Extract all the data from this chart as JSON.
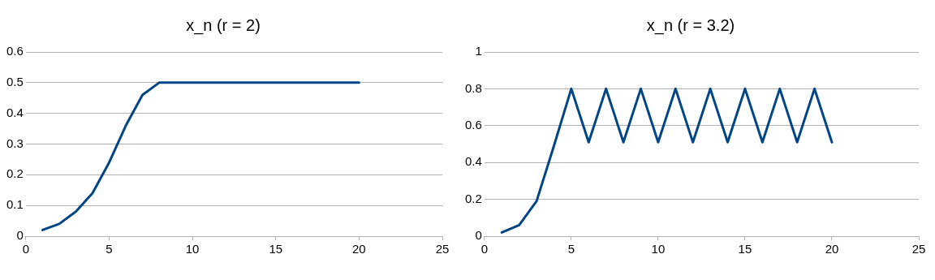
{
  "chart_data": [
    {
      "type": "line",
      "title": "x_n (r = 2)",
      "x": [
        1,
        2,
        3,
        4,
        5,
        6,
        7,
        8,
        9,
        10,
        11,
        12,
        13,
        14,
        15,
        16,
        17,
        18,
        19,
        20
      ],
      "series": [
        {
          "color": "#004586",
          "values": [
            0.02,
            0.04,
            0.08,
            0.14,
            0.24,
            0.36,
            0.46,
            0.5,
            0.5,
            0.5,
            0.5,
            0.5,
            0.5,
            0.5,
            0.5,
            0.5,
            0.5,
            0.5,
            0.5,
            0.5
          ]
        }
      ],
      "xlim": [
        0,
        25
      ],
      "xticks": [
        0,
        5,
        10,
        15,
        20,
        25
      ],
      "ylim": [
        0,
        0.6
      ],
      "yticks": [
        0,
        0.1,
        0.2,
        0.3,
        0.4,
        0.5,
        0.6
      ],
      "grid": "y",
      "legend": false,
      "marker": "none",
      "line_style": "solid"
    },
    {
      "type": "line",
      "title": "x_n (r = 3.2)",
      "x": [
        1,
        2,
        3,
        4,
        5,
        6,
        7,
        8,
        9,
        10,
        11,
        12,
        13,
        14,
        15,
        16,
        17,
        18,
        19,
        20
      ],
      "series": [
        {
          "color": "#004586",
          "values": [
            0.02,
            0.06,
            0.19,
            0.49,
            0.8,
            0.51,
            0.8,
            0.51,
            0.8,
            0.51,
            0.8,
            0.51,
            0.8,
            0.51,
            0.8,
            0.51,
            0.8,
            0.51,
            0.8,
            0.51
          ]
        }
      ],
      "xlim": [
        0,
        25
      ],
      "xticks": [
        0,
        5,
        10,
        15,
        20,
        25
      ],
      "ylim": [
        0,
        1
      ],
      "yticks": [
        0,
        0.2,
        0.4,
        0.6,
        0.8,
        1
      ],
      "grid": "y",
      "legend": false,
      "marker": "none",
      "line_style": "solid"
    }
  ]
}
